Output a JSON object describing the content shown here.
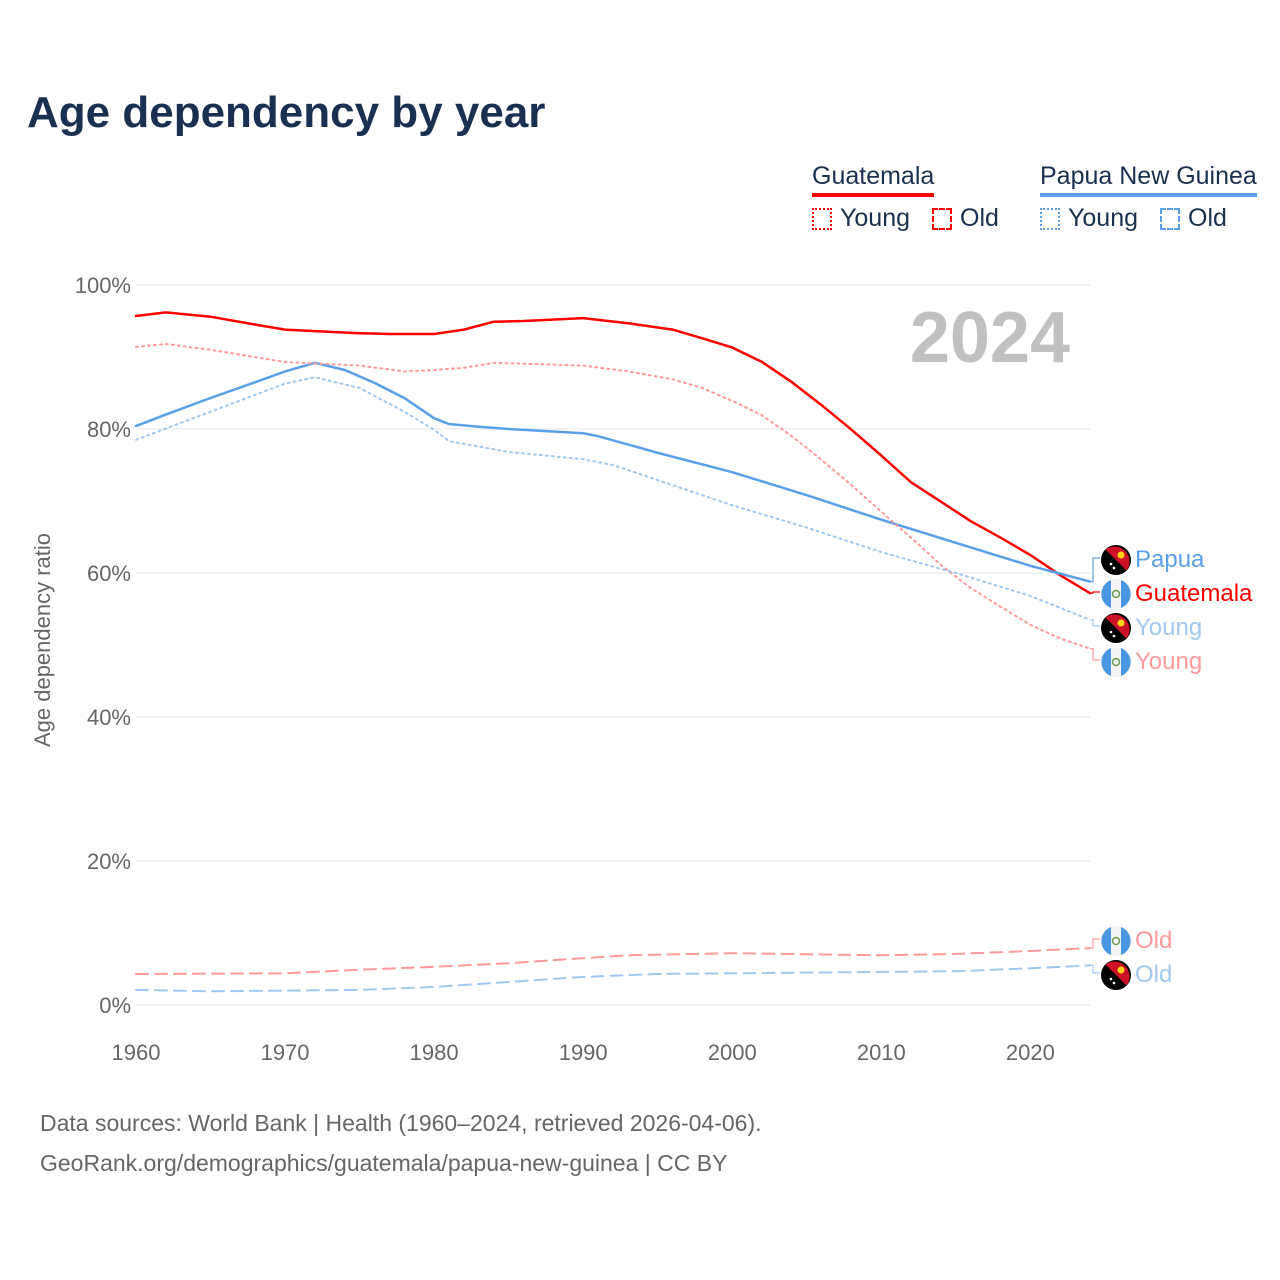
{
  "title": "Age dependency by year",
  "legend": {
    "countries": [
      {
        "name": "Guatemala",
        "color": "#ff0000",
        "light": "#ff9a9a",
        "young": "Young",
        "old": "Old"
      },
      {
        "name": "Papua New Guinea",
        "color": "#5aa0e8",
        "light": "#a0c8f0",
        "young": "Young",
        "old": "Old"
      }
    ]
  },
  "chart_data": {
    "type": "line",
    "title": "Age dependency by year",
    "xlabel": "",
    "ylabel": "Age dependency ratio",
    "xlim": [
      1960,
      2024
    ],
    "ylim": [
      0,
      100
    ],
    "x_ticks": [
      1960,
      1970,
      1980,
      1990,
      2000,
      2010,
      2020
    ],
    "y_ticks": [
      0,
      20,
      40,
      60,
      80,
      100
    ],
    "y_tick_labels": [
      "0%",
      "20%",
      "40%",
      "60%",
      "80%",
      "100%"
    ],
    "grid": true,
    "year_annotation": "2024",
    "series": [
      {
        "name": "Guatemala",
        "end_label": "Guatemala",
        "flag": "guatemala",
        "color": "#ff0000",
        "style": "solid",
        "points": [
          [
            1960,
            95.7
          ],
          [
            1962,
            96.2
          ],
          [
            1965,
            95.6
          ],
          [
            1968,
            94.5
          ],
          [
            1970,
            93.8
          ],
          [
            1972,
            93.6
          ],
          [
            1975,
            93.3
          ],
          [
            1977,
            93.2
          ],
          [
            1980,
            93.2
          ],
          [
            1982,
            93.8
          ],
          [
            1984,
            94.9
          ],
          [
            1986,
            95.0
          ],
          [
            1990,
            95.4
          ],
          [
            1993,
            94.7
          ],
          [
            1996,
            93.8
          ],
          [
            1998,
            92.6
          ],
          [
            2000,
            91.3
          ],
          [
            2002,
            89.3
          ],
          [
            2004,
            86.5
          ],
          [
            2006,
            83.3
          ],
          [
            2008,
            79.9
          ],
          [
            2010,
            76.3
          ],
          [
            2012,
            72.6
          ],
          [
            2014,
            69.9
          ],
          [
            2016,
            67.2
          ],
          [
            2018,
            64.9
          ],
          [
            2020,
            62.5
          ],
          [
            2022,
            59.7
          ],
          [
            2024,
            57.2
          ]
        ]
      },
      {
        "name": "Papua New Guinea",
        "end_label": "Papua",
        "flag": "png",
        "color": "#5aa0e8",
        "style": "solid",
        "points": [
          [
            1960,
            80.4
          ],
          [
            1962,
            82.0
          ],
          [
            1965,
            84.3
          ],
          [
            1968,
            86.5
          ],
          [
            1970,
            88.0
          ],
          [
            1972,
            89.2
          ],
          [
            1974,
            88.2
          ],
          [
            1976,
            86.4
          ],
          [
            1978,
            84.3
          ],
          [
            1980,
            81.5
          ],
          [
            1981,
            80.7
          ],
          [
            1983,
            80.3
          ],
          [
            1985,
            80.0
          ],
          [
            1990,
            79.4
          ],
          [
            1991,
            79.0
          ],
          [
            1995,
            76.7
          ],
          [
            2000,
            74.0
          ],
          [
            2005,
            70.8
          ],
          [
            2010,
            67.4
          ],
          [
            2015,
            64.2
          ],
          [
            2020,
            61.0
          ],
          [
            2024,
            58.8
          ]
        ]
      },
      {
        "name": "Guatemala Young",
        "end_label": "Young",
        "flag": "guatemala",
        "color": "#ff9a9a",
        "style": "dotted",
        "points": [
          [
            1960,
            91.4
          ],
          [
            1962,
            91.8
          ],
          [
            1965,
            91.0
          ],
          [
            1970,
            89.3
          ],
          [
            1975,
            88.8
          ],
          [
            1978,
            88.0
          ],
          [
            1980,
            88.2
          ],
          [
            1982,
            88.5
          ],
          [
            1984,
            89.2
          ],
          [
            1990,
            88.8
          ],
          [
            1993,
            88.0
          ],
          [
            1996,
            86.9
          ],
          [
            1998,
            85.7
          ],
          [
            2000,
            83.9
          ],
          [
            2002,
            81.9
          ],
          [
            2004,
            79.0
          ],
          [
            2006,
            75.7
          ],
          [
            2008,
            72.2
          ],
          [
            2010,
            68.5
          ],
          [
            2012,
            64.9
          ],
          [
            2014,
            61.1
          ],
          [
            2016,
            57.9
          ],
          [
            2018,
            55.3
          ],
          [
            2020,
            52.8
          ],
          [
            2022,
            50.9
          ],
          [
            2024,
            49.5
          ]
        ]
      },
      {
        "name": "Papua New Guinea Young",
        "end_label": "Young",
        "flag": "png",
        "color": "#a0c8f0",
        "style": "dotted",
        "points": [
          [
            1960,
            78.5
          ],
          [
            1965,
            82.4
          ],
          [
            1970,
            86.3
          ],
          [
            1972,
            87.2
          ],
          [
            1975,
            85.7
          ],
          [
            1978,
            82.4
          ],
          [
            1980,
            79.9
          ],
          [
            1981,
            78.3
          ],
          [
            1985,
            76.8
          ],
          [
            1990,
            75.8
          ],
          [
            1992,
            75.0
          ],
          [
            1995,
            72.9
          ],
          [
            2000,
            69.4
          ],
          [
            2005,
            66.3
          ],
          [
            2010,
            62.9
          ],
          [
            2015,
            60.0
          ],
          [
            2020,
            56.8
          ],
          [
            2024,
            53.5
          ]
        ]
      },
      {
        "name": "Guatemala Old",
        "end_label": "Old",
        "flag": "guatemala",
        "color": "#ff9a9a",
        "style": "dashed",
        "points": [
          [
            1960,
            4.3
          ],
          [
            1970,
            4.4
          ],
          [
            1975,
            4.9
          ],
          [
            1980,
            5.3
          ],
          [
            1985,
            5.8
          ],
          [
            1990,
            6.5
          ],
          [
            1993,
            6.9
          ],
          [
            2000,
            7.2
          ],
          [
            2010,
            6.9
          ],
          [
            2015,
            7.1
          ],
          [
            2020,
            7.5
          ],
          [
            2024,
            7.9
          ]
        ]
      },
      {
        "name": "Papua New Guinea Old",
        "end_label": "Old",
        "flag": "png",
        "color": "#a0c8f0",
        "style": "dashed",
        "points": [
          [
            1960,
            2.1
          ],
          [
            1965,
            1.9
          ],
          [
            1975,
            2.1
          ],
          [
            1980,
            2.5
          ],
          [
            1985,
            3.2
          ],
          [
            1990,
            3.9
          ],
          [
            1995,
            4.3
          ],
          [
            2000,
            4.4
          ],
          [
            2010,
            4.6
          ],
          [
            2015,
            4.7
          ],
          [
            2020,
            5.1
          ],
          [
            2024,
            5.5
          ]
        ]
      }
    ]
  },
  "footer": {
    "line1": "Data sources: World Bank | Health (1960–2024, retrieved 2026-04-06).",
    "line2": "GeoRank.org/demographics/guatemala/papua-new-guinea | CC BY"
  }
}
